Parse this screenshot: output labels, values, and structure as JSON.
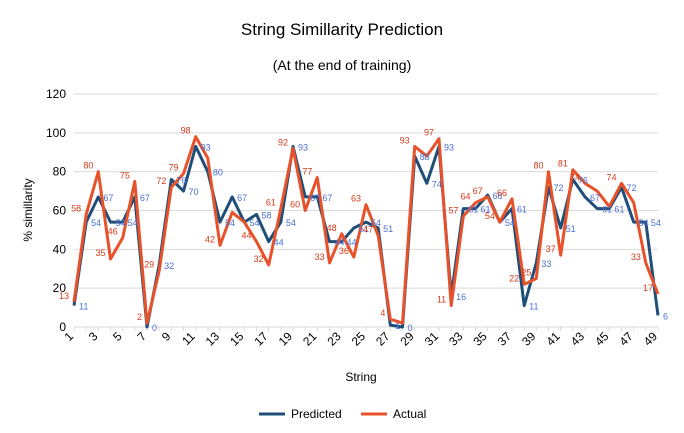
{
  "chart_data": {
    "type": "line",
    "title": "String Simillarity Prediction",
    "subtitle": "(At the end of training)",
    "xlabel": "String",
    "ylabel": "% simillarity",
    "ylim": [
      0,
      120
    ],
    "yticks": [
      0,
      20,
      40,
      60,
      80,
      100,
      120
    ],
    "x": [
      1,
      2,
      3,
      4,
      5,
      6,
      7,
      8,
      9,
      10,
      11,
      12,
      13,
      14,
      15,
      16,
      17,
      18,
      19,
      20,
      21,
      22,
      23,
      24,
      25,
      26,
      27,
      28,
      29,
      30,
      31,
      32,
      33,
      34,
      35,
      36,
      37,
      38,
      39,
      40,
      41,
      42,
      43,
      44,
      45,
      46,
      47,
      48,
      49
    ],
    "xtick_labels": [
      "1",
      "3",
      "5",
      "7",
      "9",
      "11",
      "13",
      "15",
      "17",
      "19",
      "21",
      "23",
      "25",
      "27",
      "29",
      "31",
      "33",
      "35",
      "37",
      "39",
      "41",
      "43",
      "45",
      "47",
      "49"
    ],
    "grid": "horizontal",
    "legend": "bottom",
    "series": [
      {
        "name": "Predicted",
        "color": "#1f4e79",
        "values": [
          11,
          54,
          67,
          54,
          54,
          67,
          0,
          32,
          76,
          70,
          93,
          80,
          54,
          67,
          54,
          58,
          44,
          54,
          93,
          67,
          67,
          44,
          44,
          51,
          54,
          51,
          1,
          0,
          88,
          74,
          93,
          16,
          61,
          61,
          68,
          54,
          61,
          11,
          33,
          72,
          51,
          76,
          67,
          61,
          61,
          72,
          54,
          54,
          6
        ],
        "labels": [
          "11",
          "54",
          "67",
          "54",
          "54",
          "67",
          "0",
          "32",
          "76",
          "70",
          "93",
          "80",
          "54",
          "67",
          "54",
          "58",
          "44",
          "54",
          "93",
          "67",
          "67",
          "44",
          "44",
          "51",
          "54",
          "51",
          "1",
          "0",
          "88",
          "74",
          "93",
          "16",
          "61",
          "61",
          "68",
          "54",
          "61",
          "11",
          "33",
          "72",
          "51",
          "76",
          "67",
          "61",
          "61",
          "72",
          "54",
          "54",
          "6"
        ]
      },
      {
        "name": "Actual",
        "color": "#e8522a",
        "values": [
          13,
          58,
          80,
          35,
          46,
          75,
          2,
          29,
          72,
          79,
          98,
          87,
          42,
          59,
          54,
          44,
          32,
          61,
          92,
          60,
          77,
          33,
          48,
          36,
          63,
          47,
          4,
          2,
          93,
          88,
          97,
          11,
          57,
          64,
          67,
          54,
          66,
          22,
          25,
          80,
          37,
          81,
          74,
          70,
          62,
          74,
          64,
          33,
          17
        ],
        "labels": [
          "13",
          "58",
          "80",
          "35",
          "46",
          "75",
          "2",
          "29",
          "72",
          "79",
          "98",
          "",
          "42",
          "",
          "",
          "44",
          "32",
          "61",
          "92",
          "60",
          "77",
          "33",
          "48",
          "36",
          "63",
          "47",
          "4",
          "",
          "93",
          "",
          "97",
          "11",
          "57",
          "64",
          "67",
          "54",
          "66",
          "22",
          "25",
          "80",
          "37",
          "81",
          "74",
          "",
          "",
          "74",
          "",
          "33",
          "17"
        ]
      }
    ]
  }
}
